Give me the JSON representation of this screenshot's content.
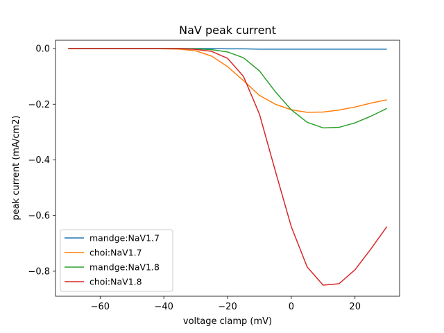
{
  "chart_data": {
    "type": "line",
    "title": "NaV peak current",
    "xlabel": "voltage clamp (mV)",
    "ylabel": "peak current (mA/cm2)",
    "xlim": [
      -74,
      34
    ],
    "ylim": [
      -0.89,
      0.03
    ],
    "x_ticks": [
      -60,
      -40,
      -20,
      0,
      20
    ],
    "x_tick_labels": [
      "−60",
      "−40",
      "−20",
      "0",
      "20"
    ],
    "y_ticks": [
      0.0,
      -0.2,
      -0.4,
      -0.6,
      -0.8
    ],
    "y_tick_labels": [
      "0.0",
      "−0.2",
      "−0.4",
      "−0.6",
      "−0.8"
    ],
    "grid": false,
    "legend_position": "lower-left",
    "x": [
      -70,
      -65,
      -60,
      -55,
      -50,
      -45,
      -40,
      -35,
      -30,
      -25,
      -20,
      -15,
      -10,
      -5,
      0,
      5,
      10,
      15,
      20,
      25,
      30
    ],
    "series": [
      {
        "name": "mandge:NaV1.7",
        "color": "#1f77b4",
        "values": [
          0,
          0,
          0,
          0,
          0,
          0,
          0,
          0,
          0,
          0,
          -0.001,
          -0.001,
          -0.002,
          -0.002,
          -0.002,
          -0.002,
          -0.002,
          -0.002,
          -0.002,
          -0.002,
          -0.002
        ]
      },
      {
        "name": "choi:NaV1.7",
        "color": "#ff7f0e",
        "values": [
          0,
          0,
          0,
          0,
          0,
          0,
          -0.001,
          -0.002,
          -0.008,
          -0.027,
          -0.065,
          -0.115,
          -0.168,
          -0.2,
          -0.22,
          -0.229,
          -0.228,
          -0.221,
          -0.21,
          -0.196,
          -0.184
        ]
      },
      {
        "name": "mandge:NaV1.8",
        "color": "#2ca02c",
        "values": [
          0,
          0,
          0,
          0,
          0,
          0,
          0,
          0,
          -0.001,
          -0.004,
          -0.012,
          -0.033,
          -0.08,
          -0.155,
          -0.22,
          -0.265,
          -0.285,
          -0.283,
          -0.267,
          -0.243,
          -0.215
        ]
      },
      {
        "name": "choi:NaV1.8",
        "color": "#d62728",
        "values": [
          0,
          0,
          0,
          0,
          0,
          0,
          0,
          0,
          -0.003,
          -0.01,
          -0.035,
          -0.1,
          -0.235,
          -0.44,
          -0.64,
          -0.785,
          -0.85,
          -0.845,
          -0.795,
          -0.72,
          -0.64
        ]
      }
    ]
  }
}
